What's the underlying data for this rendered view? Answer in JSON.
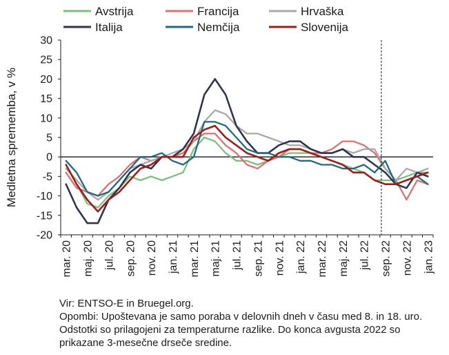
{
  "chart_data": {
    "type": "line",
    "ylabel": "Medletna sprememba, v %",
    "ylim": [
      -20,
      30
    ],
    "yticks": [
      -20,
      -15,
      -10,
      -5,
      0,
      5,
      10,
      15,
      20,
      25,
      30
    ],
    "x": [
      "mar. 20",
      "apr. 20",
      "maj. 20",
      "jun. 20",
      "jul. 20",
      "avg. 20",
      "sep. 20",
      "okt. 20",
      "nov. 20",
      "dec. 20",
      "jan. 21",
      "feb. 21",
      "mar. 21",
      "apr. 21",
      "maj. 21",
      "jun. 21",
      "jul. 21",
      "avg. 21",
      "sep. 21",
      "okt. 21",
      "nov. 21",
      "dec. 21",
      "jan. 22",
      "feb. 22",
      "mar. 22",
      "apr. 22",
      "maj. 22",
      "jun. 22",
      "jul. 22",
      "avg. 22",
      "sep. 22",
      "okt. 22",
      "nov. 22",
      "dec. 22",
      "jan. 23"
    ],
    "xticklabels": [
      "mar. 20",
      "maj. 20",
      "jul. 20",
      "sep. 20",
      "nov. 20",
      "jan. 21",
      "mar. 21",
      "maj. 21",
      "jul. 21",
      "sep. 21",
      "nov. 21",
      "jan. 22",
      "mar. 22",
      "maj. 22",
      "jul. 22",
      "sep. 22",
      "nov. 22",
      "jan. 23"
    ],
    "vline_at": "avg. 22",
    "series": [
      {
        "name": "Avstrija",
        "color": "#7cbf7c",
        "values": [
          -2,
          -7,
          -12,
          -13,
          -10,
          -8,
          -5,
          -6,
          -5,
          -6,
          -5,
          -4,
          2,
          5,
          4,
          1,
          -1,
          -1,
          -2,
          -1,
          0,
          1,
          1,
          1,
          0,
          -1,
          -2,
          -3,
          -4,
          -6,
          -6,
          -6,
          -5,
          -4,
          -4
        ]
      },
      {
        "name": "Francija",
        "color": "#e07070",
        "values": [
          -4,
          -8,
          -9,
          -10,
          -7,
          -5,
          -2,
          0,
          -1,
          0,
          0,
          1,
          4,
          6,
          6,
          3,
          1,
          -2,
          -3,
          -1,
          0,
          2,
          2,
          1,
          1,
          2,
          4,
          4,
          3,
          1,
          -3,
          -6,
          -11,
          -6,
          -7
        ]
      },
      {
        "name": "Hrvaška",
        "color": "#a8a8ab",
        "values": [
          -3,
          -6,
          -9,
          -11,
          -9,
          -6,
          -3,
          -2,
          -1,
          0,
          1,
          2,
          4,
          9,
          12,
          11,
          8,
          6,
          6,
          5,
          4,
          3,
          3,
          2,
          1,
          1,
          2,
          1,
          2,
          2,
          -3,
          -6,
          -3,
          -4,
          -3
        ]
      },
      {
        "name": "Italija",
        "color": "#2e3550",
        "values": [
          -7,
          -13,
          -17,
          -17,
          -11,
          -8,
          -4,
          -2,
          -3,
          0,
          0,
          2,
          6,
          16,
          20,
          16,
          8,
          4,
          1,
          1,
          3,
          4,
          4,
          2,
          1,
          1,
          2,
          0,
          0,
          -2,
          -4,
          -7,
          -8,
          -4,
          -5
        ]
      },
      {
        "name": "Nemčija",
        "color": "#1c6b80",
        "values": [
          -1,
          -4,
          -9,
          -10,
          -9,
          -6,
          -3,
          0,
          0,
          1,
          -1,
          -2,
          0,
          9,
          9,
          8,
          5,
          2,
          1,
          1,
          0,
          0,
          -1,
          -1,
          -2,
          -2,
          -3,
          -3,
          -2,
          -4,
          -1,
          -7,
          -6,
          -5,
          -7
        ]
      },
      {
        "name": "Slovenija",
        "color": "#a01c14",
        "values": [
          -2,
          -7,
          -11,
          -14,
          -11,
          -9,
          -6,
          -3,
          -2,
          0,
          0,
          0,
          5,
          7,
          8,
          5,
          3,
          1,
          0,
          -1,
          1,
          2,
          2,
          1,
          0,
          -1,
          -2,
          -4,
          -4,
          -6,
          -7,
          -7,
          -6,
          -5,
          -4
        ]
      }
    ]
  },
  "footnote": {
    "source": "Vir: ENTSO-E in Bruegel.org.",
    "notes": "Opombi: Upoštevana je samo poraba v delovnih dneh v času med 8. in 18. uro. Odstotki so prilagojeni za temperaturne razlike. Do konca avgusta 2022 so prikazane 3-mesečne drseče sredine."
  }
}
